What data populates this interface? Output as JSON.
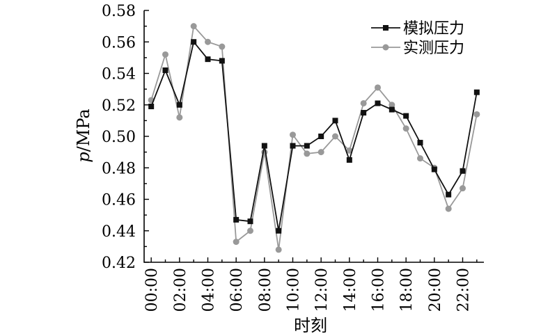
{
  "chart_data": {
    "type": "line",
    "ylabel_italic": "p",
    "ylabel_rest": "/MPa",
    "xlabel": "时刻",
    "ylim": [
      0.42,
      0.58
    ],
    "yticks": [
      "0.42",
      "0.44",
      "0.46",
      "0.48",
      "0.50",
      "0.52",
      "0.54",
      "0.56",
      "0.58"
    ],
    "xlim": [
      -0.5,
      23.5
    ],
    "xticks": [
      {
        "x": 0,
        "label": "00:00"
      },
      {
        "x": 2,
        "label": "02:00"
      },
      {
        "x": 4,
        "label": "04:00"
      },
      {
        "x": 6,
        "label": "06:00"
      },
      {
        "x": 8,
        "label": "08:00"
      },
      {
        "x": 10,
        "label": "10:00"
      },
      {
        "x": 12,
        "label": "12:00"
      },
      {
        "x": 14,
        "label": "14:00"
      },
      {
        "x": 16,
        "label": "16:00"
      },
      {
        "x": 18,
        "label": "18:00"
      },
      {
        "x": 20,
        "label": "20:00"
      },
      {
        "x": 22,
        "label": "22:00"
      }
    ],
    "legend_position": "top-right",
    "grid": false,
    "series": [
      {
        "name": "模拟压力",
        "color": "#111111",
        "marker": "square",
        "x": [
          0,
          1,
          2,
          3,
          4,
          5,
          6,
          7,
          8,
          9,
          10,
          11,
          12,
          13,
          14,
          15,
          16,
          17,
          18,
          19,
          20,
          21,
          22,
          23
        ],
        "values": [
          0.519,
          0.542,
          0.52,
          0.56,
          0.549,
          0.548,
          0.447,
          0.446,
          0.494,
          0.44,
          0.494,
          0.494,
          0.5,
          0.51,
          0.485,
          0.515,
          0.521,
          0.517,
          0.513,
          0.496,
          0.479,
          0.463,
          0.478,
          0.528
        ]
      },
      {
        "name": "实测压力",
        "color": "#999999",
        "marker": "circle",
        "x": [
          0,
          1,
          2,
          3,
          4,
          5,
          6,
          7,
          8,
          9,
          10,
          11,
          12,
          13,
          14,
          15,
          16,
          17,
          18,
          19,
          20,
          21,
          22,
          23
        ],
        "values": [
          0.523,
          0.552,
          0.512,
          0.57,
          0.56,
          0.557,
          0.433,
          0.44,
          0.49,
          0.428,
          0.501,
          0.489,
          0.49,
          0.5,
          0.491,
          0.521,
          0.531,
          0.52,
          0.505,
          0.486,
          0.48,
          0.454,
          0.467,
          0.514
        ]
      }
    ]
  }
}
